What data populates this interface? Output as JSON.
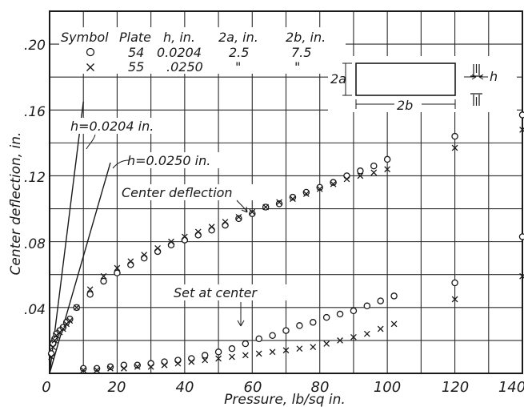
{
  "chart_data": {
    "type": "scatter",
    "xlabel": "Pressure, lb/sq in.",
    "ylabel": "Center deflection, in.",
    "xlim": [
      0,
      140
    ],
    "ylim": [
      0,
      0.22
    ],
    "x_ticks": [
      "0",
      "20",
      "40",
      "60",
      "80",
      "100",
      "120",
      "140"
    ],
    "y_ticks": [
      ".04",
      ".08",
      ".12",
      ".16",
      ".20"
    ],
    "grid": true,
    "legend": {
      "headers": [
        "Symbol",
        "Plate",
        "h, in.",
        "2a, in.",
        "2b, in."
      ],
      "rows": [
        {
          "symbol": "circle",
          "plate": "54",
          "h": "0.0204",
          "a2": "2.5",
          "b2": "7.5"
        },
        {
          "symbol": "cross",
          "plate": "55",
          "h": ".0250",
          "a2": "\"",
          "b2": "\""
        }
      ]
    },
    "annotations": {
      "line1": "h=0.0204 in.",
      "line2": "h=0.0250 in.",
      "center_deflection": "Center deflection",
      "set_at_center": "Set at center",
      "dim_2a": "2a",
      "dim_2b": "2b",
      "dim_h": "h"
    },
    "series": [
      {
        "marker": "circle",
        "role": "center-deflection",
        "x": [
          0.5,
          1,
          1.5,
          2,
          3,
          4,
          5,
          6,
          8,
          12,
          16,
          20,
          24,
          28,
          32,
          36,
          40,
          44,
          48,
          52,
          56,
          60,
          64,
          68,
          72,
          76,
          80,
          84,
          88,
          92,
          96,
          100,
          120,
          140
        ],
        "y": [
          0.012,
          0.018,
          0.021,
          0.024,
          0.026,
          0.028,
          0.031,
          0.033,
          0.04,
          0.048,
          0.056,
          0.061,
          0.066,
          0.07,
          0.074,
          0.078,
          0.081,
          0.084,
          0.087,
          0.09,
          0.094,
          0.097,
          0.101,
          0.103,
          0.107,
          0.11,
          0.113,
          0.116,
          0.12,
          0.123,
          0.126,
          0.13,
          0.144,
          0.157
        ]
      },
      {
        "marker": "cross",
        "role": "center-deflection",
        "x": [
          0.5,
          1,
          1.5,
          2,
          3,
          4,
          5,
          6,
          8,
          12,
          16,
          20,
          24,
          28,
          32,
          36,
          40,
          44,
          48,
          52,
          56,
          60,
          64,
          68,
          72,
          76,
          80,
          84,
          88,
          92,
          96,
          100,
          120,
          140
        ],
        "y": [
          0.01,
          0.016,
          0.02,
          0.023,
          0.025,
          0.027,
          0.03,
          0.032,
          0.04,
          0.051,
          0.059,
          0.064,
          0.068,
          0.072,
          0.076,
          0.08,
          0.083,
          0.086,
          0.089,
          0.092,
          0.095,
          0.098,
          0.101,
          0.104,
          0.106,
          0.109,
          0.112,
          0.115,
          0.118,
          0.12,
          0.122,
          0.124,
          0.137,
          0.148
        ]
      },
      {
        "marker": "circle",
        "role": "set-at-center",
        "x": [
          10,
          14,
          18,
          22,
          26,
          30,
          34,
          38,
          42,
          46,
          50,
          54,
          58,
          62,
          66,
          70,
          74,
          78,
          82,
          86,
          90,
          94,
          98,
          102,
          120,
          140
        ],
        "y": [
          0.003,
          0.003,
          0.004,
          0.005,
          0.005,
          0.006,
          0.007,
          0.008,
          0.009,
          0.011,
          0.013,
          0.015,
          0.018,
          0.021,
          0.023,
          0.026,
          0.029,
          0.031,
          0.034,
          0.036,
          0.038,
          0.041,
          0.044,
          0.047,
          0.055,
          0.083
        ]
      },
      {
        "marker": "cross",
        "role": "set-at-center",
        "x": [
          10,
          14,
          18,
          22,
          26,
          30,
          34,
          38,
          42,
          46,
          50,
          54,
          58,
          62,
          66,
          70,
          74,
          78,
          82,
          86,
          90,
          94,
          98,
          102,
          120,
          140
        ],
        "y": [
          0.002,
          0.002,
          0.003,
          0.003,
          0.004,
          0.004,
          0.005,
          0.006,
          0.007,
          0.008,
          0.009,
          0.01,
          0.011,
          0.012,
          0.013,
          0.014,
          0.015,
          0.016,
          0.018,
          0.02,
          0.022,
          0.024,
          0.027,
          0.03,
          0.045,
          0.059
        ]
      }
    ],
    "lines": [
      {
        "label": "h=0.0204 in.",
        "x": [
          0,
          10
        ],
        "y": [
          0,
          0.165
        ]
      },
      {
        "label": "h=0.0250 in.",
        "x": [
          0,
          18
        ],
        "y": [
          0,
          0.128
        ]
      }
    ]
  }
}
